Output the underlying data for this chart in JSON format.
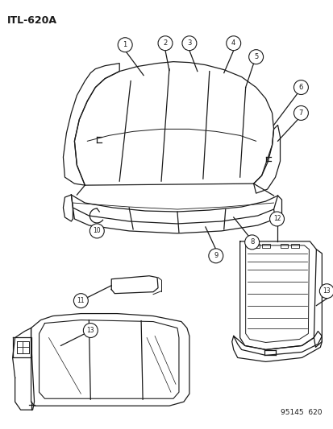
{
  "title": "ITL-620A",
  "footer": "95145  620",
  "bg": "#ffffff",
  "lc": "#1a1a1a",
  "figsize": [
    4.14,
    5.33
  ],
  "dpi": 100
}
